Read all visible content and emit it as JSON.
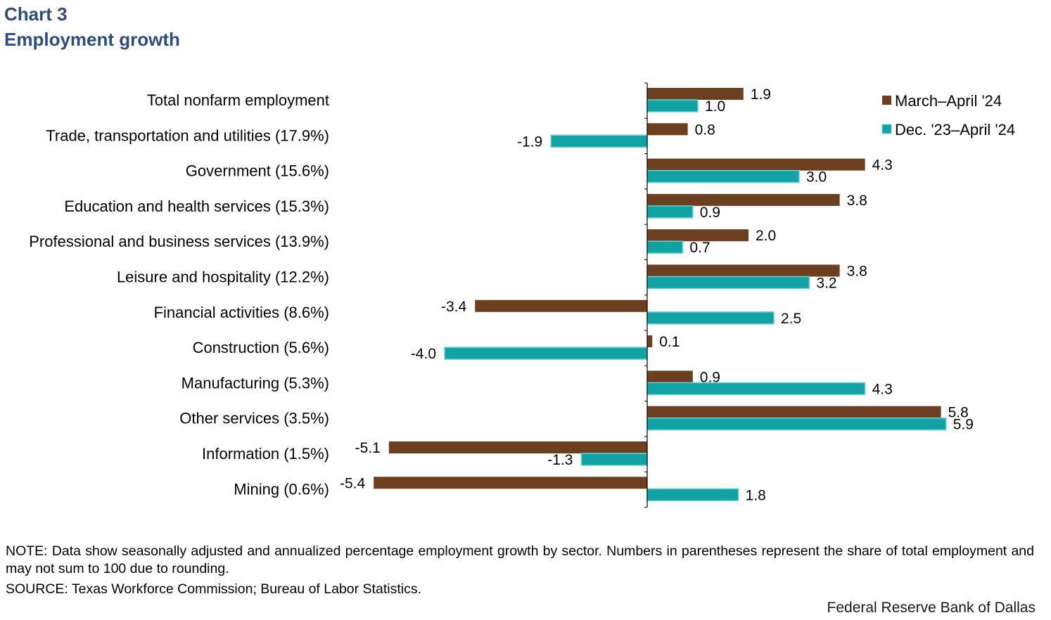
{
  "header": {
    "chart_number": "Chart 3",
    "title": "Employment growth"
  },
  "colors": {
    "series1": "#6b3f1f",
    "series2": "#11a3a3",
    "series2_border": "#6ecfd6",
    "title": "#2e4d7b"
  },
  "chart_data": {
    "type": "bar",
    "orientation": "horizontal",
    "title": "Employment growth",
    "categories": [
      "Total nonfarm employment",
      "Trade, transportation and utilities (17.9%)",
      "Government (15.6%)",
      "Education and health services (15.3%)",
      "Professional and business services (13.9%)",
      "Leisure and hospitality (12.2%)",
      "Financial activities (8.6%)",
      "Construction (5.6%)",
      "Manufacturing (5.3%)",
      "Other services (3.5%)",
      "Information (1.5%)",
      "Mining (0.6%)"
    ],
    "series": [
      {
        "name": "March–April '24",
        "values": [
          1.9,
          0.8,
          4.3,
          3.8,
          2.0,
          3.8,
          -3.4,
          0.1,
          0.9,
          5.8,
          -5.1,
          -5.4
        ],
        "labels": [
          "1.9",
          "0.8",
          "4.3",
          "3.8",
          "2.0",
          "3.8",
          "-3.4",
          "0.1",
          "0.9",
          "5.8",
          "-5.1",
          "-5.4"
        ]
      },
      {
        "name": "Dec. '23–April '24",
        "values": [
          1.0,
          -1.9,
          3.0,
          0.9,
          0.7,
          3.2,
          2.5,
          -4.0,
          4.3,
          5.9,
          -1.3,
          1.8
        ],
        "labels": [
          "1.0",
          "-1.9",
          "3.0",
          "0.9",
          "0.7",
          "3.2",
          "2.5",
          "-4.0",
          "4.3",
          "5.9",
          "-1.3",
          "1.8"
        ]
      }
    ],
    "xlim": [
      -5.4,
      6.0
    ],
    "legend": "top-right",
    "grid": false
  },
  "footer": {
    "note": "NOTE: Data show seasonally adjusted and annualized percentage employment growth by sector. Numbers in parentheses represent the share of total employment and may not sum to 100 due to rounding.",
    "source": "SOURCE: Texas Workforce Commission; Bureau of Labor Statistics.",
    "credit": "Federal Reserve Bank of Dallas"
  }
}
